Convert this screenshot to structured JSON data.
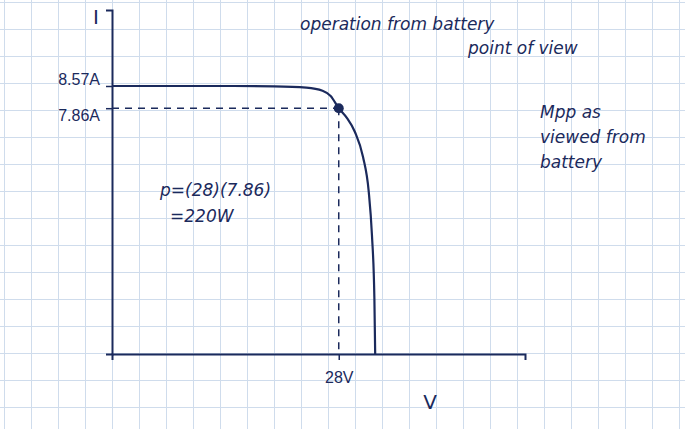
{
  "chart_data": {
    "type": "line",
    "x_label": "V",
    "y_label": "I",
    "xlim": [
      0,
      51
    ],
    "ylim": [
      0,
      11
    ],
    "xticks": [
      {
        "value": 28,
        "label": "28V"
      }
    ],
    "yticks": [
      {
        "value": 8.57,
        "label": "8.57A"
      },
      {
        "value": 7.86,
        "label": "7.86A"
      }
    ],
    "grid": false,
    "series": [
      {
        "type": "line",
        "color": "#1b2a5c",
        "line_style": "solid",
        "x": [
          0,
          5,
          10,
          15,
          20,
          24,
          26,
          27,
          28,
          29,
          30,
          31,
          31.7,
          32.1,
          32.4,
          32.5
        ],
        "values": [
          8.57,
          8.57,
          8.57,
          8.57,
          8.56,
          8.52,
          8.42,
          8.25,
          7.86,
          7.55,
          7.1,
          6.3,
          5.2,
          3.8,
          1.8,
          0
        ]
      },
      {
        "type": "scatter",
        "color": "#1b2a5c",
        "marker": "circle",
        "line_style": "dashed",
        "x": [
          28
        ],
        "values": [
          7.86
        ]
      }
    ],
    "annotations": [
      "operation from battery",
      "point of view",
      "Mpp as",
      "viewed from",
      "battery",
      "p=(28)(7.86)",
      "=220W"
    ]
  }
}
